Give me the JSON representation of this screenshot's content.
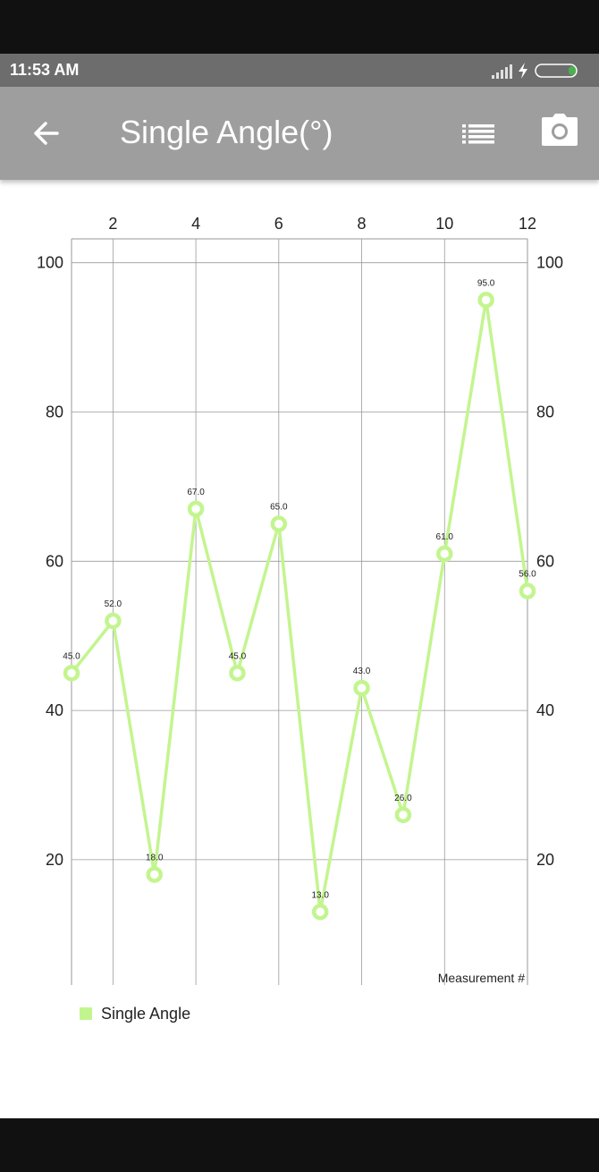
{
  "status_bar": {
    "time": "11:53 AM"
  },
  "app_bar": {
    "title": "Single Angle(°)",
    "back_icon": "arrow-left-icon",
    "list_icon": "list-icon",
    "camera_icon": "camera-icon"
  },
  "colors": {
    "series": "#c3f58f",
    "app_bar": "#9e9e9e",
    "status_bar": "#6d6d6d"
  },
  "chart_data": {
    "type": "line",
    "x": [
      1,
      2,
      3,
      4,
      5,
      6,
      7,
      8,
      9,
      10,
      11,
      12
    ],
    "series": [
      {
        "name": "Single Angle",
        "values": [
          45.0,
          52.0,
          18.0,
          67.0,
          45.0,
          65.0,
          13.0,
          43.0,
          26.0,
          61.0,
          95.0,
          56.0
        ]
      }
    ],
    "data_labels": [
      "45.0",
      "52.0",
      "18.0",
      "67.0",
      "45.0",
      "65.0",
      "13.0",
      "43.0",
      "26.0",
      "61.0",
      "95.0",
      "56.0"
    ],
    "x_ticks": [
      "2",
      "4",
      "6",
      "8",
      "10",
      "12"
    ],
    "y_ticks": [
      "100",
      "80",
      "60",
      "40",
      "20"
    ],
    "xlabel": "Measurement #",
    "ylabel": "",
    "xlim": [
      1,
      12
    ],
    "ylim": [
      3.2,
      103.2
    ],
    "x_axis_position": "top",
    "y_axis": "both-sides",
    "grid": true,
    "legend": "bottom-left"
  }
}
